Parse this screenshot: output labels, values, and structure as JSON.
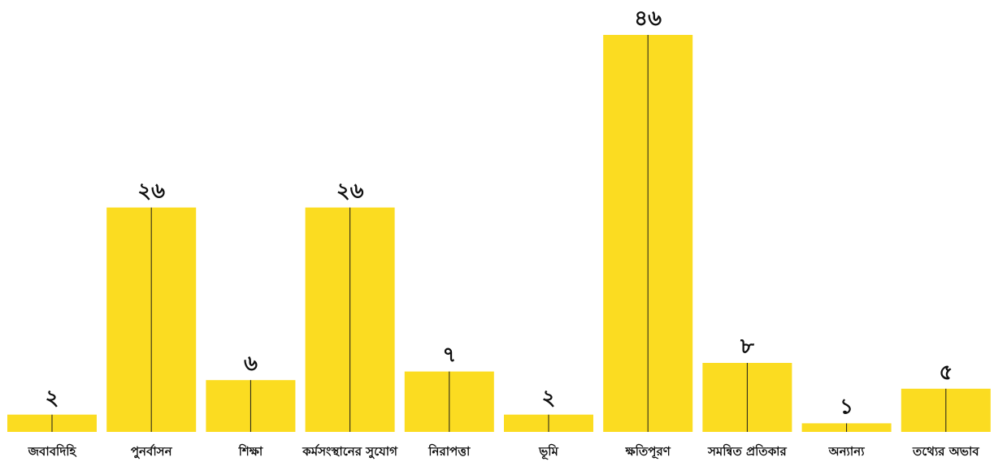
{
  "chart_data": {
    "type": "bar",
    "categories": [
      "জবাবদিহি",
      "পুনর্বাসন",
      "শিক্ষা",
      "কর্মসংস্থানের সুযোগ",
      "নিরাপত্তা",
      "ভূমি",
      "ক্ষতিপূরণ",
      "সমন্বিত প্রতিকার",
      "অন্যান্য",
      "তথ্যের অভাব"
    ],
    "values": [
      2,
      26,
      6,
      26,
      7,
      2,
      46,
      8,
      1,
      5
    ],
    "value_labels": [
      "২",
      "২৬",
      "৬",
      "২৬",
      "৭",
      "২",
      "৪৬",
      "৮",
      "১",
      "৫"
    ],
    "ylim": [
      0,
      46
    ],
    "grid": false,
    "bar_color": "#fbdc21",
    "line_color": "#1a1a1a",
    "title": "",
    "xlabel": "",
    "ylabel": ""
  }
}
